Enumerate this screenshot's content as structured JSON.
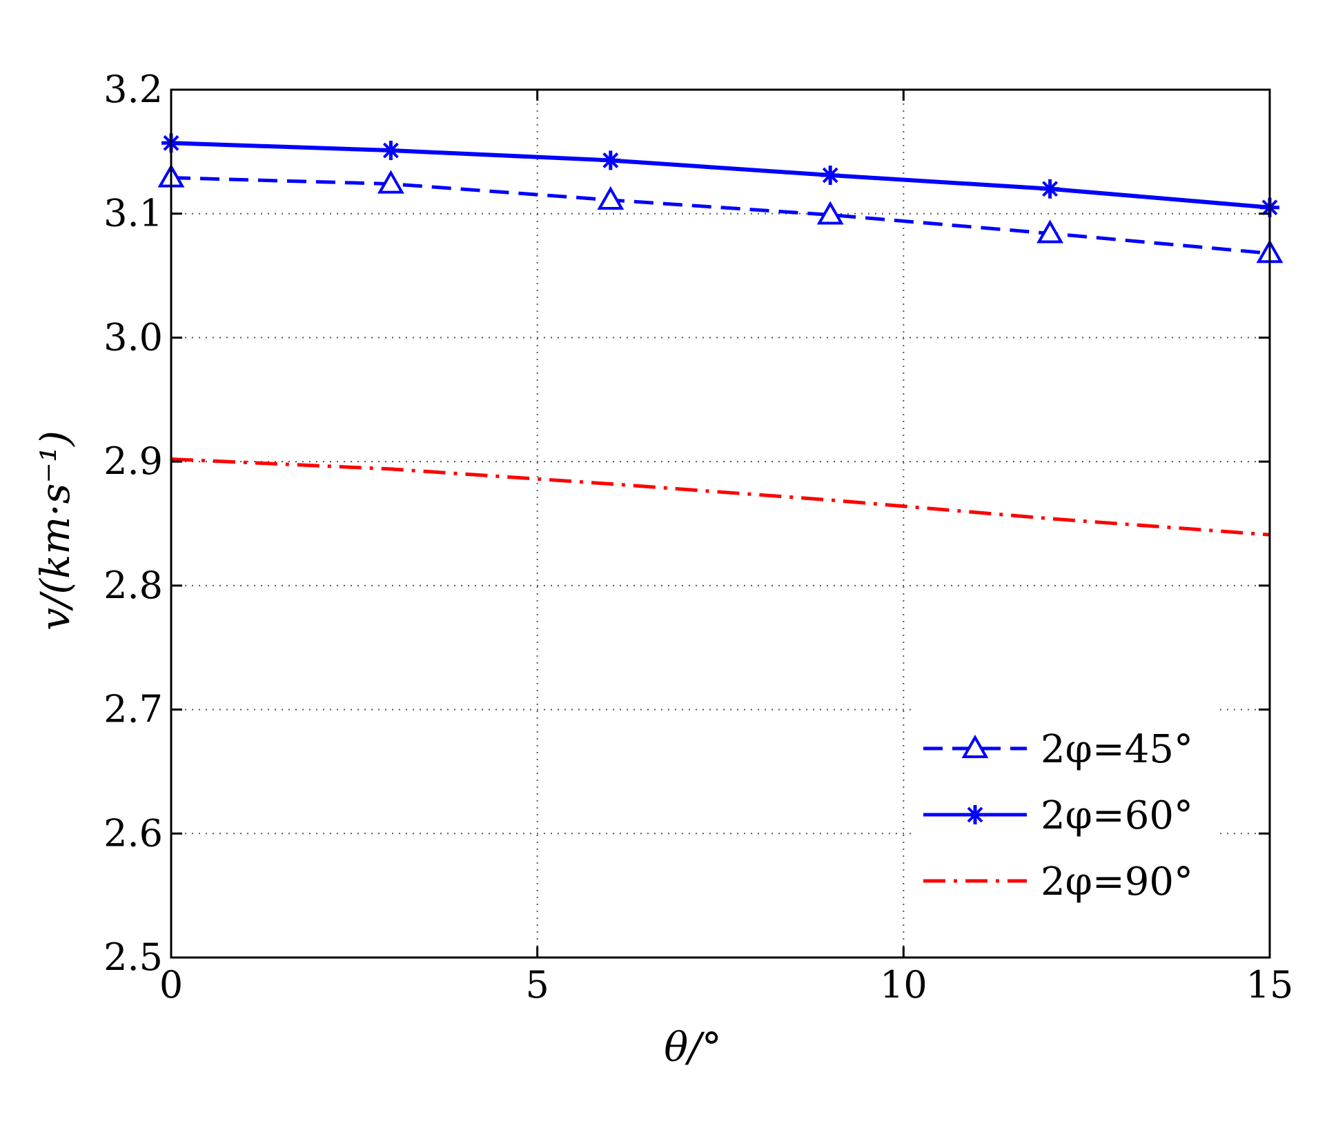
{
  "chart_data": {
    "type": "line",
    "title": "",
    "xlabel": "θ/°",
    "ylabel": "v/(km·s⁻¹)",
    "xlim": [
      0,
      15
    ],
    "ylim": [
      2.5,
      3.2
    ],
    "x_ticks": [
      "0",
      "5",
      "10",
      "15"
    ],
    "y_ticks": [
      "2.5",
      "2.6",
      "2.7",
      "2.8",
      "2.9",
      "3.0",
      "3.1",
      "3.2"
    ],
    "grid": true,
    "legend_position": "lower-right",
    "series": [
      {
        "name": "2φ=45°",
        "color": "#0000ff",
        "line_style": "dashed",
        "marker": "triangle",
        "x": [
          0,
          3,
          6,
          9,
          12,
          15
        ],
        "values": [
          3.129,
          3.124,
          3.111,
          3.099,
          3.084,
          3.068
        ]
      },
      {
        "name": "2φ=60°",
        "color": "#0000ff",
        "line_style": "solid",
        "marker": "star",
        "x": [
          0,
          3,
          6,
          9,
          12,
          15
        ],
        "values": [
          3.157,
          3.151,
          3.143,
          3.131,
          3.12,
          3.105
        ]
      },
      {
        "name": "2φ=90°",
        "color": "#ff0000",
        "line_style": "dash-dot",
        "marker": "none",
        "x": [
          0,
          3,
          6,
          9,
          12,
          15
        ],
        "values": [
          2.902,
          2.894,
          2.882,
          2.869,
          2.854,
          2.841
        ]
      }
    ]
  }
}
